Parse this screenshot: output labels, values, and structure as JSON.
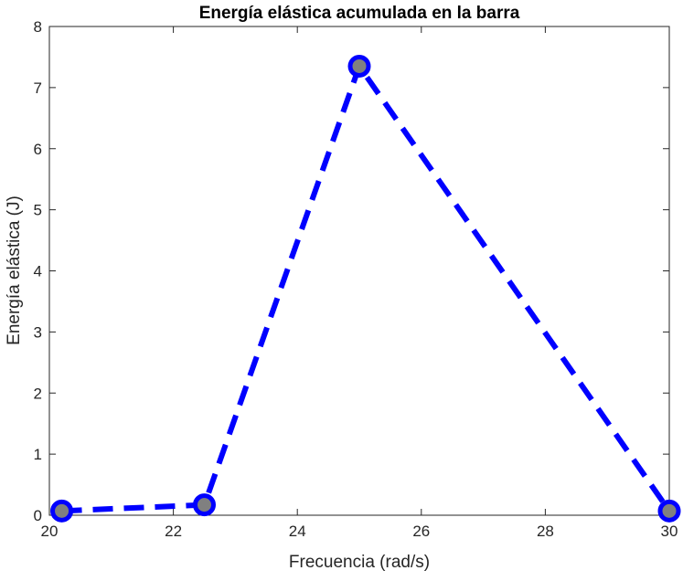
{
  "chart_data": {
    "type": "line",
    "title": "Energía elástica acumulada en la barra",
    "xlabel": "Frecuencia (rad/s)",
    "ylabel": "Energía elástica (J)",
    "xlim": [
      20,
      30
    ],
    "ylim": [
      0,
      8
    ],
    "xticks": [
      20,
      22,
      24,
      26,
      28,
      30
    ],
    "yticks": [
      0,
      1,
      2,
      3,
      4,
      5,
      6,
      7,
      8
    ],
    "grid": false,
    "series": [
      {
        "x": [
          20.2,
          22.5,
          25,
          30
        ],
        "y": [
          0.07,
          0.17,
          7.35,
          0.07
        ],
        "line_color": "#0000ff",
        "line_style": "dashed",
        "marker": "circle",
        "marker_edge_color": "#0000ff",
        "marker_face_color": "#808080"
      }
    ]
  }
}
